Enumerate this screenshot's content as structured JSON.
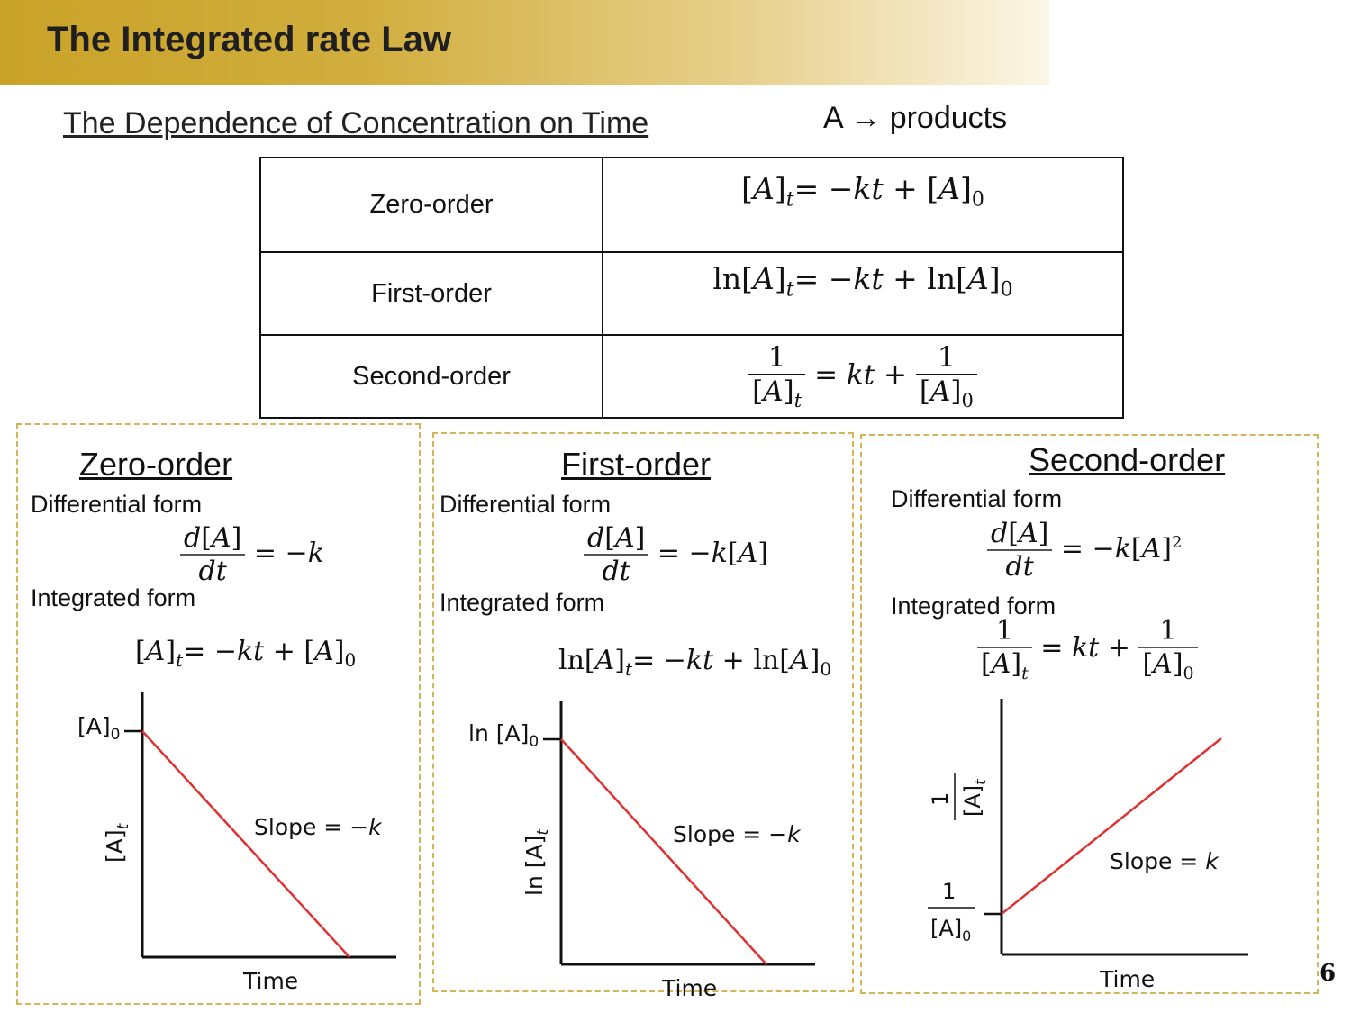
{
  "header": {
    "title": "The Integrated rate Law"
  },
  "subtitle": "The Dependence of Concentration on Time",
  "reaction": "A → products",
  "table": {
    "rows": [
      {
        "order": "Zero-order"
      },
      {
        "order": "First-order"
      },
      {
        "order": "Second-order"
      }
    ]
  },
  "panels": [
    {
      "title": "Zero-order",
      "differential_label": "Differential form",
      "integrated_label": "Integrated form",
      "graph": {
        "y_intercept_label": "[A]0",
        "y_axis_label": "[A]t",
        "x_axis_label": "Time",
        "slope_label": "Slope = −k"
      }
    },
    {
      "title": "First-order",
      "differential_label": "Differential form",
      "integrated_label": "Integrated form",
      "graph": {
        "y_intercept_label": "ln [A]0",
        "y_axis_label": "ln [A]t",
        "x_axis_label": "Time",
        "slope_label": "Slope = −k"
      }
    },
    {
      "title": "Second-order",
      "differential_label": "Differential form",
      "integrated_label": "Integrated form",
      "graph": {
        "y_intercept_label": "1/[A]0",
        "y_axis_label": "1/[A]t",
        "x_axis_label": "Time",
        "slope_label": "Slope = k"
      }
    }
  ],
  "page_number": "6",
  "colors": {
    "banner_gold": "#c9a227",
    "panel_border": "#d4b458",
    "line_red": "#e03030"
  }
}
